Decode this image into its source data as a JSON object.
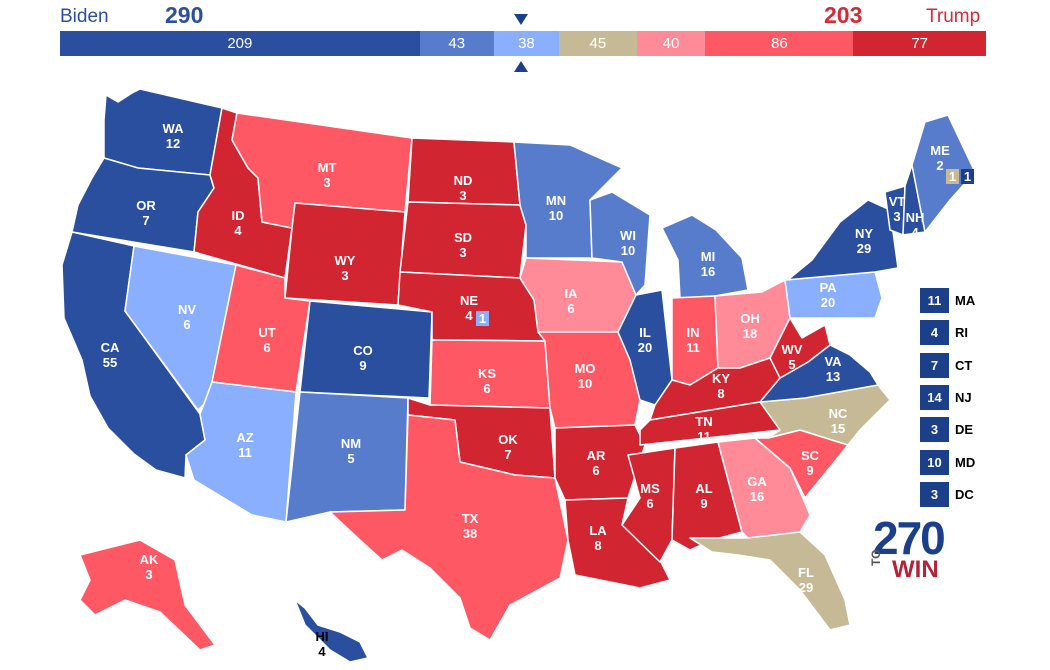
{
  "header": {
    "dem_name": "Biden",
    "dem_total": "290",
    "rep_name": "Trump",
    "rep_total": "203"
  },
  "colors": {
    "safe_d": "#1c3f8a",
    "likely_d": "#2a4f9f",
    "lean_d": "#577ccc",
    "tilt_d": "#8aaffe",
    "tossup": "#c6ba96",
    "tilt_r": "#ff8b98",
    "lean_r": "#ff5865",
    "likely_r": "#d22532",
    "safe_r": "#bf1d29"
  },
  "bar": [
    {
      "value": "209",
      "rating": "likely_d"
    },
    {
      "value": "43",
      "rating": "lean_d"
    },
    {
      "value": "38",
      "rating": "tilt_d"
    },
    {
      "value": "45",
      "rating": "tossup"
    },
    {
      "value": "40",
      "rating": "tilt_r"
    },
    {
      "value": "86",
      "rating": "lean_r"
    },
    {
      "value": "77",
      "rating": "likely_r"
    }
  ],
  "states": {
    "WA": {
      "ev": "12",
      "rating": "likely_d"
    },
    "OR": {
      "ev": "7",
      "rating": "likely_d"
    },
    "CA": {
      "ev": "55",
      "rating": "likely_d"
    },
    "NV": {
      "ev": "6",
      "rating": "tilt_d"
    },
    "ID": {
      "ev": "4",
      "rating": "likely_r"
    },
    "MT": {
      "ev": "3",
      "rating": "lean_r"
    },
    "WY": {
      "ev": "3",
      "rating": "likely_r"
    },
    "UT": {
      "ev": "6",
      "rating": "lean_r"
    },
    "AZ": {
      "ev": "11",
      "rating": "tilt_d"
    },
    "CO": {
      "ev": "9",
      "rating": "likely_d"
    },
    "NM": {
      "ev": "5",
      "rating": "lean_d"
    },
    "ND": {
      "ev": "3",
      "rating": "likely_r"
    },
    "SD": {
      "ev": "3",
      "rating": "likely_r"
    },
    "NE": {
      "ev": "4",
      "rating": "likely_r"
    },
    "KS": {
      "ev": "6",
      "rating": "lean_r"
    },
    "OK": {
      "ev": "7",
      "rating": "likely_r"
    },
    "TX": {
      "ev": "38",
      "rating": "lean_r"
    },
    "MN": {
      "ev": "10",
      "rating": "lean_d"
    },
    "IA": {
      "ev": "6",
      "rating": "tilt_r"
    },
    "MO": {
      "ev": "10",
      "rating": "lean_r"
    },
    "AR": {
      "ev": "6",
      "rating": "likely_r"
    },
    "LA": {
      "ev": "8",
      "rating": "likely_r"
    },
    "WI": {
      "ev": "10",
      "rating": "lean_d"
    },
    "IL": {
      "ev": "20",
      "rating": "likely_d"
    },
    "MI": {
      "ev": "16",
      "rating": "lean_d"
    },
    "IN": {
      "ev": "11",
      "rating": "lean_r"
    },
    "OH": {
      "ev": "18",
      "rating": "tilt_r"
    },
    "KY": {
      "ev": "8",
      "rating": "likely_r"
    },
    "TN": {
      "ev": "11",
      "rating": "likely_r"
    },
    "MS": {
      "ev": "6",
      "rating": "likely_r"
    },
    "AL": {
      "ev": "9",
      "rating": "likely_r"
    },
    "GA": {
      "ev": "16",
      "rating": "tilt_r"
    },
    "FL": {
      "ev": "29",
      "rating": "tossup"
    },
    "SC": {
      "ev": "9",
      "rating": "lean_r"
    },
    "NC": {
      "ev": "15",
      "rating": "tossup"
    },
    "VA": {
      "ev": "13",
      "rating": "likely_d"
    },
    "WV": {
      "ev": "5",
      "rating": "likely_r"
    },
    "PA": {
      "ev": "20",
      "rating": "tilt_d"
    },
    "NY": {
      "ev": "29",
      "rating": "likely_d"
    },
    "VT": {
      "ev": "3",
      "rating": "likely_d"
    },
    "NH": {
      "ev": "4",
      "rating": "likely_d"
    },
    "ME": {
      "ev": "2",
      "rating": "lean_d"
    },
    "AK": {
      "ev": "3",
      "rating": "lean_r"
    },
    "HI": {
      "ev": "4",
      "rating": "likely_d"
    }
  },
  "splits": {
    "ME_cd1": "1",
    "ME_cd2": "1",
    "NE_cd2": "1"
  },
  "small_states": [
    {
      "abbr": "MA",
      "ev": "11"
    },
    {
      "abbr": "RI",
      "ev": "4"
    },
    {
      "abbr": "CT",
      "ev": "7"
    },
    {
      "abbr": "NJ",
      "ev": "14"
    },
    {
      "abbr": "DE",
      "ev": "3"
    },
    {
      "abbr": "MD",
      "ev": "10"
    },
    {
      "abbr": "DC",
      "ev": "3"
    }
  ],
  "logo": {
    "num": "270",
    "to": "TO",
    "win": "WIN"
  }
}
